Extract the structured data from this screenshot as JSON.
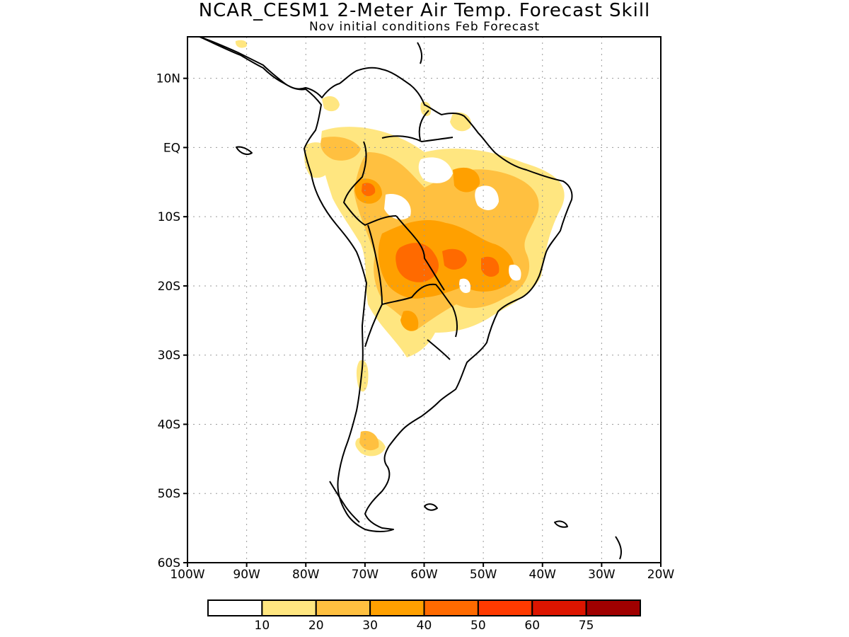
{
  "title": "NCAR_CESM1 2-Meter Air Temp. Forecast Skill",
  "subtitle": "Nov initial conditions  Feb Forecast",
  "map": {
    "region": "South America",
    "lon_range": [
      -100,
      -20
    ],
    "lat_range": [
      -60,
      16
    ],
    "lat_labels": [
      "10N",
      "EQ",
      "10S",
      "20S",
      "30S",
      "40S",
      "50S",
      "60S"
    ],
    "lat_values": [
      10,
      0,
      -10,
      -20,
      -30,
      -40,
      -50,
      -60
    ],
    "lon_labels": [
      "100W",
      "90W",
      "80W",
      "70W",
      "60W",
      "50W",
      "40W",
      "30W",
      "20W"
    ],
    "lon_values": [
      -100,
      -90,
      -80,
      -70,
      -60,
      -50,
      -40,
      -30,
      -20
    ],
    "gridlines": true
  },
  "colorbar": {
    "labels": [
      "10",
      "20",
      "30",
      "40",
      "50",
      "60",
      "75"
    ],
    "colors": [
      "#ffffff",
      "#ffe680",
      "#ffc040",
      "#ffa000",
      "#ff6a00",
      "#ff3a00",
      "#dd1500",
      "#a00000"
    ]
  },
  "colors": {
    "land_outline": "#000000",
    "grid": "#9a9a9a"
  }
}
